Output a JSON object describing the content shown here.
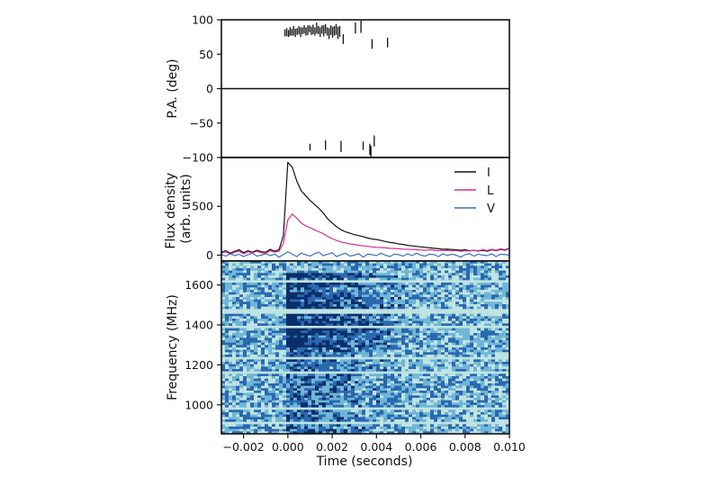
{
  "figure": {
    "xlabel": "Time (seconds)",
    "x_ticks": [
      "−0.002",
      "0.000",
      "0.002",
      "0.004",
      "0.006",
      "0.008",
      "0.010"
    ]
  },
  "chart_data": [
    {
      "type": "scatter",
      "panel": "position-angle",
      "ylabel": "P.A. (deg)",
      "xlim": [
        -0.003,
        0.01
      ],
      "ylim": [
        -100,
        100
      ],
      "y_ticks": [
        "100",
        "50",
        "0",
        "−50",
        "−100"
      ],
      "y_tick_values": [
        100,
        50,
        0,
        -50,
        -100
      ],
      "grid": false,
      "series": [
        {
          "marker": "vertical error bar",
          "color": "#111111",
          "x": [
            -0.00013,
            -5e-05,
            3e-05,
            0.0001,
            0.00018,
            0.00026,
            0.00034,
            0.00042,
            0.0005,
            0.00058,
            0.00066,
            0.00074,
            0.00082,
            0.0009,
            0.00098,
            0.00106,
            0.00114,
            0.00122,
            0.0013,
            0.00138,
            0.00146,
            0.00154,
            0.00162,
            0.0017,
            0.00178,
            0.00186,
            0.00194,
            0.00202,
            0.0021,
            0.00218,
            0.00226,
            0.00234,
            0.0025,
            0.00305,
            0.0033,
            0.0038,
            0.0045,
            0.001,
            0.0017,
            0.0024,
            0.0034,
            0.0037,
            0.00375,
            0.0039
          ],
          "y": [
            81,
            82,
            80,
            83,
            82,
            84,
            81,
            83,
            85,
            82,
            84,
            86,
            83,
            85,
            87,
            84,
            86,
            83,
            88,
            85,
            82,
            86,
            84,
            87,
            83,
            80,
            85,
            82,
            84,
            86,
            81,
            83,
            72,
            88,
            90,
            65,
            67,
            -85,
            -82,
            -84,
            -83,
            -88,
            -92,
            -76
          ],
          "err": [
            5,
            6,
            5,
            6,
            5,
            7,
            6,
            5,
            6,
            7,
            5,
            6,
            6,
            7,
            5,
            6,
            7,
            6,
            8,
            6,
            7,
            6,
            8,
            7,
            6,
            8,
            7,
            8,
            7,
            8,
            9,
            8,
            7,
            8,
            9,
            7,
            7,
            5,
            7,
            8,
            6,
            8,
            9,
            8
          ]
        }
      ]
    },
    {
      "type": "line",
      "panel": "flux-density",
      "ylabel": "Flux density\n(arb. units)",
      "xlim": [
        -0.003,
        0.01
      ],
      "ylim": [
        -60,
        1000
      ],
      "y_ticks": [
        "0",
        "500"
      ],
      "y_tick_values": [
        0,
        500
      ],
      "grid": false,
      "legend_position": "top-right",
      "x": [
        -0.003,
        -0.0028,
        -0.0026,
        -0.0024,
        -0.0022,
        -0.002,
        -0.0018,
        -0.0016,
        -0.0014,
        -0.0012,
        -0.001,
        -0.0008,
        -0.0006,
        -0.0004,
        -0.0002,
        0.0,
        0.0002,
        0.0004,
        0.0006,
        0.0008,
        0.001,
        0.0012,
        0.0014,
        0.0016,
        0.0018,
        0.002,
        0.0022,
        0.0024,
        0.0026,
        0.0028,
        0.003,
        0.0032,
        0.0034,
        0.0036,
        0.0038,
        0.004,
        0.0042,
        0.0044,
        0.0046,
        0.0048,
        0.005,
        0.0052,
        0.0054,
        0.0056,
        0.0058,
        0.006,
        0.0062,
        0.0064,
        0.0066,
        0.0068,
        0.007,
        0.0072,
        0.0074,
        0.0076,
        0.0078,
        0.008,
        0.0082,
        0.0084,
        0.0086,
        0.0088,
        0.009,
        0.0092,
        0.0094,
        0.0096,
        0.0098,
        0.01
      ],
      "series": [
        {
          "name": "I",
          "color": "#111111",
          "values": [
            30,
            45,
            20,
            40,
            55,
            25,
            45,
            30,
            50,
            35,
            30,
            60,
            40,
            55,
            200,
            950,
            900,
            760,
            660,
            610,
            560,
            520,
            480,
            430,
            370,
            330,
            290,
            260,
            240,
            225,
            210,
            200,
            190,
            175,
            165,
            160,
            150,
            140,
            130,
            125,
            115,
            110,
            100,
            95,
            90,
            85,
            80,
            75,
            70,
            65,
            60,
            62,
            58,
            55,
            50,
            55,
            45,
            50,
            42,
            48,
            40,
            55,
            45,
            60,
            50,
            70
          ]
        },
        {
          "name": "L",
          "color": "#d62f8c",
          "values": [
            20,
            35,
            10,
            30,
            40,
            15,
            35,
            25,
            40,
            25,
            20,
            45,
            30,
            40,
            120,
            360,
            420,
            380,
            330,
            300,
            280,
            260,
            240,
            220,
            190,
            170,
            150,
            135,
            125,
            115,
            110,
            100,
            95,
            90,
            85,
            80,
            78,
            75,
            70,
            68,
            65,
            62,
            60,
            58,
            55,
            52,
            50,
            55,
            50,
            45,
            48,
            50,
            45,
            48,
            40,
            45,
            42,
            50,
            45,
            55,
            48,
            60,
            50,
            65,
            55,
            75
          ]
        },
        {
          "name": "V",
          "color": "#3a6fc4",
          "values": [
            5,
            -10,
            15,
            -5,
            10,
            -15,
            5,
            20,
            -10,
            0,
            15,
            -5,
            10,
            -20,
            5,
            35,
            10,
            -15,
            20,
            5,
            -10,
            15,
            30,
            -5,
            10,
            25,
            -15,
            5,
            20,
            -10,
            0,
            15,
            -20,
            10,
            5,
            -5,
            20,
            0,
            -15,
            10,
            5,
            -10,
            15,
            -5,
            20,
            0,
            -10,
            10,
            5,
            -15,
            15,
            -5,
            10,
            0,
            -20,
            5,
            15,
            -10,
            10,
            0,
            -5,
            15,
            -15,
            10,
            5,
            0
          ]
        }
      ]
    },
    {
      "type": "heatmap",
      "panel": "dynamic-spectrum",
      "ylabel": "Frequency (MHz)",
      "xlim": [
        -0.003,
        0.01
      ],
      "ylim": [
        855,
        1720
      ],
      "y_ticks": [
        "1600",
        "1400",
        "1200",
        "1000"
      ],
      "y_tick_values": [
        1600,
        1400,
        1200,
        1000
      ],
      "colormap": [
        "#0b2f6b",
        "#2a68b0",
        "#6fb6d6",
        "#bfe3e1",
        "#f4fbf8"
      ],
      "description_values": {
        "pulse_start": 0.0,
        "pulse_bright_until": 0.0025,
        "pulse_fade_until": 0.006,
        "bright_frequency_bands_mhz": [
          [
            1290,
            1340
          ],
          [
            1350,
            1430
          ],
          [
            1440,
            1520
          ],
          [
            1530,
            1560
          ],
          [
            1590,
            1620
          ],
          [
            1640,
            1660
          ]
        ],
        "flagged_frequency_bands_mhz": [
          [
            1610,
            1625
          ],
          [
            1455,
            1475
          ],
          [
            1380,
            1395
          ],
          [
            1225,
            1245
          ],
          [
            1155,
            1170
          ],
          [
            975,
            990
          ],
          [
            905,
            915
          ]
        ],
        "noise_region_mhz": [
          855,
          1720
        ]
      }
    }
  ]
}
